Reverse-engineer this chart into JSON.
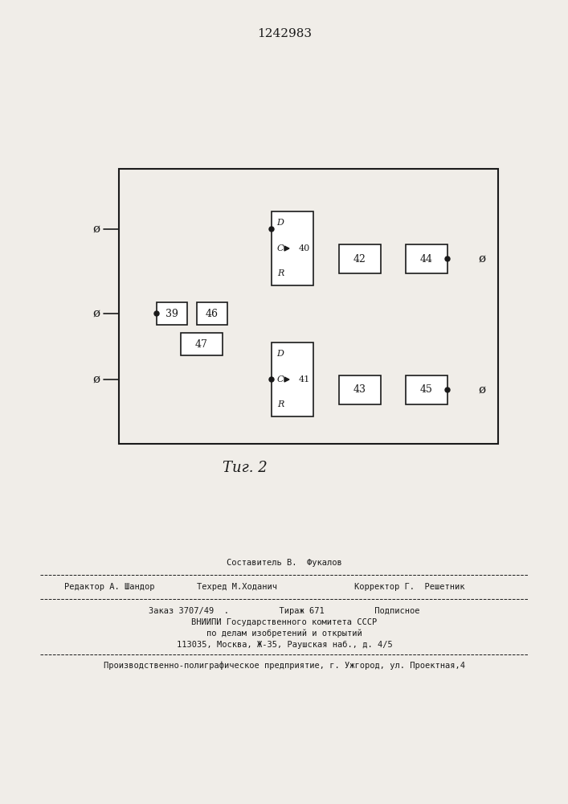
{
  "title": "1242983",
  "fig_caption": "Τиг. 2",
  "bg_color": "#f0ede8",
  "line_color": "#1a1a1a",
  "box_color": "#ffffff",
  "footer": {
    "sestavitel": "Составитель В.  Фукалов",
    "redaktor": "Редактор А. Шандор",
    "tehred": "Техред М.Ходанич",
    "korrektor": "Корректор Г.  Решетник",
    "zakaz": "Заказ 3707/49  .",
    "tirazh": "Тираж 671",
    "podpisnoe": "Подписное",
    "vniip1": "ВНИИПИ Государственного комитета СССР",
    "vniip2": "по делам изобретений и открытий",
    "address": "113035, Москва, Ж-35, Раушская наб., д. 4/5",
    "plant": "Производственно-полиграфическое предприятие, г. Ужгород, ул. Проектная,4"
  }
}
